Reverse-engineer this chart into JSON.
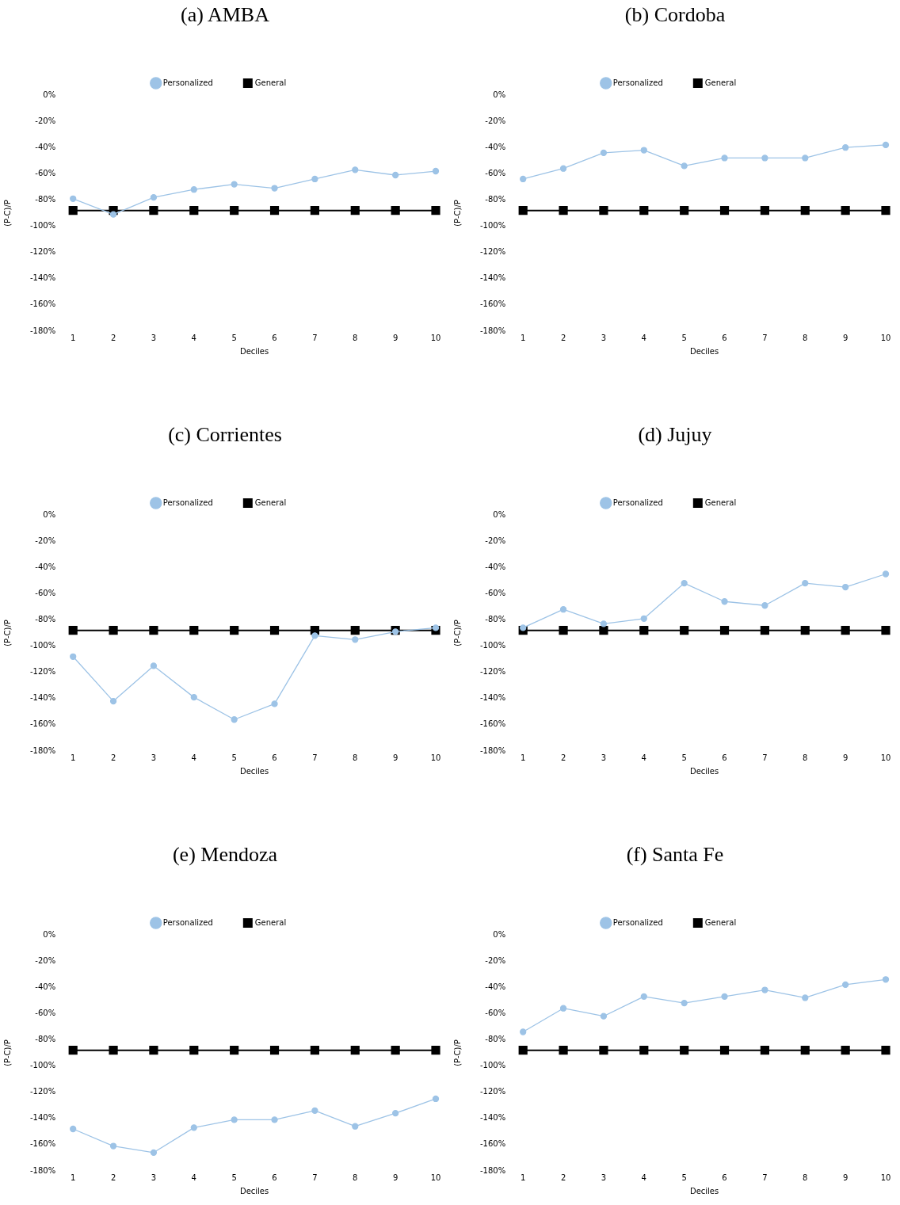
{
  "chart_data": [
    {
      "type": "line",
      "title": "(a) AMBA",
      "xlabel": "Deciles",
      "ylabel": "(P-C)/P",
      "categories": [
        "1",
        "2",
        "3",
        "4",
        "5",
        "6",
        "7",
        "8",
        "9",
        "10"
      ],
      "ylim": [
        -180,
        0
      ],
      "yticks": [
        {
          "value": -180,
          "label": "-180%"
        },
        {
          "value": -160,
          "label": "-160%"
        },
        {
          "value": -140,
          "label": "-140%"
        },
        {
          "value": -120,
          "label": "-120%"
        },
        {
          "value": -100,
          "label": "-100%"
        },
        {
          "value": -80,
          "label": "-80%"
        },
        {
          "value": -60,
          "label": "-60%"
        },
        {
          "value": -40,
          "label": "-40%"
        },
        {
          "value": -20,
          "label": "-20%"
        },
        {
          "value": 0,
          "label": "0%"
        }
      ],
      "grid": false,
      "legend": "top",
      "series": [
        {
          "name": "Personalized",
          "color": "#9dc3e6",
          "marker": "circle",
          "values": [
            -79,
            -91,
            -78,
            -72,
            -68,
            -71,
            -64,
            -57,
            -61,
            -58
          ]
        },
        {
          "name": "General",
          "color": "#000000",
          "marker": "square",
          "values": [
            -88,
            -88,
            -88,
            -88,
            -88,
            -88,
            -88,
            -88,
            -88,
            -88
          ]
        }
      ]
    },
    {
      "type": "line",
      "title": "(b) Cordoba",
      "xlabel": "Deciles",
      "ylabel": "(P-C)/P",
      "categories": [
        "1",
        "2",
        "3",
        "4",
        "5",
        "6",
        "7",
        "8",
        "9",
        "10"
      ],
      "ylim": [
        -180,
        0
      ],
      "yticks": [
        {
          "value": -180,
          "label": "-180%"
        },
        {
          "value": -160,
          "label": "-160%"
        },
        {
          "value": -140,
          "label": "-140%"
        },
        {
          "value": -120,
          "label": "-120%"
        },
        {
          "value": -100,
          "label": "-100%"
        },
        {
          "value": -80,
          "label": "-80%"
        },
        {
          "value": -60,
          "label": "-60%"
        },
        {
          "value": -40,
          "label": "-40%"
        },
        {
          "value": -20,
          "label": "-20%"
        },
        {
          "value": 0,
          "label": "0%"
        }
      ],
      "grid": false,
      "legend": "top",
      "series": [
        {
          "name": "Personalized",
          "color": "#9dc3e6",
          "marker": "circle",
          "values": [
            -64,
            -56,
            -44,
            -42,
            -54,
            -48,
            -48,
            -48,
            -40,
            -38
          ]
        },
        {
          "name": "General",
          "color": "#000000",
          "marker": "square",
          "values": [
            -88,
            -88,
            -88,
            -88,
            -88,
            -88,
            -88,
            -88,
            -88,
            -88
          ]
        }
      ]
    },
    {
      "type": "line",
      "title": "(c) Corrientes",
      "xlabel": "Deciles",
      "ylabel": "(P-C)/P",
      "categories": [
        "1",
        "2",
        "3",
        "4",
        "5",
        "6",
        "7",
        "8",
        "9",
        "10"
      ],
      "ylim": [
        -180,
        0
      ],
      "yticks": [
        {
          "value": -180,
          "label": "-180%"
        },
        {
          "value": -160,
          "label": "-160%"
        },
        {
          "value": -140,
          "label": "-140%"
        },
        {
          "value": -120,
          "label": "-120%"
        },
        {
          "value": -100,
          "label": "-100%"
        },
        {
          "value": -80,
          "label": "-80%"
        },
        {
          "value": -60,
          "label": "-60%"
        },
        {
          "value": -40,
          "label": "-40%"
        },
        {
          "value": -20,
          "label": "-20%"
        },
        {
          "value": 0,
          "label": "0%"
        }
      ],
      "grid": false,
      "legend": "top",
      "series": [
        {
          "name": "Personalized",
          "color": "#9dc3e6",
          "marker": "circle",
          "values": [
            -108,
            -142,
            -115,
            -139,
            -156,
            -144,
            -92,
            -95,
            -89,
            -86
          ]
        },
        {
          "name": "General",
          "color": "#000000",
          "marker": "square",
          "values": [
            -88,
            -88,
            -88,
            -88,
            -88,
            -88,
            -88,
            -88,
            -88,
            -88
          ]
        }
      ]
    },
    {
      "type": "line",
      "title": "(d) Jujuy",
      "xlabel": "Deciles",
      "ylabel": "(P-C)/P",
      "categories": [
        "1",
        "2",
        "3",
        "4",
        "5",
        "6",
        "7",
        "8",
        "9",
        "10"
      ],
      "ylim": [
        -180,
        0
      ],
      "yticks": [
        {
          "value": -180,
          "label": "-180%"
        },
        {
          "value": -160,
          "label": "-160%"
        },
        {
          "value": -140,
          "label": "-140%"
        },
        {
          "value": -120,
          "label": "-120%"
        },
        {
          "value": -100,
          "label": "-100%"
        },
        {
          "value": -80,
          "label": "-80%"
        },
        {
          "value": -60,
          "label": "-60%"
        },
        {
          "value": -40,
          "label": "-40%"
        },
        {
          "value": -20,
          "label": "-20%"
        },
        {
          "value": 0,
          "label": "0%"
        }
      ],
      "grid": false,
      "legend": "top",
      "series": [
        {
          "name": "Personalized",
          "color": "#9dc3e6",
          "marker": "circle",
          "values": [
            -86,
            -72,
            -83,
            -79,
            -52,
            -66,
            -69,
            -52,
            -55,
            -45
          ]
        },
        {
          "name": "General",
          "color": "#000000",
          "marker": "square",
          "values": [
            -88,
            -88,
            -88,
            -88,
            -88,
            -88,
            -88,
            -88,
            -88,
            -88
          ]
        }
      ]
    },
    {
      "type": "line",
      "title": "(e) Mendoza",
      "xlabel": "Deciles",
      "ylabel": "(P-C)/P",
      "categories": [
        "1",
        "2",
        "3",
        "4",
        "5",
        "6",
        "7",
        "8",
        "9",
        "10"
      ],
      "ylim": [
        -180,
        0
      ],
      "yticks": [
        {
          "value": -180,
          "label": "-180%"
        },
        {
          "value": -160,
          "label": "-160%"
        },
        {
          "value": -140,
          "label": "-140%"
        },
        {
          "value": -120,
          "label": "-120%"
        },
        {
          "value": -100,
          "label": "-100%"
        },
        {
          "value": -80,
          "label": "-80%"
        },
        {
          "value": -60,
          "label": "-60%"
        },
        {
          "value": -40,
          "label": "-40%"
        },
        {
          "value": -20,
          "label": "-20%"
        },
        {
          "value": 0,
          "label": "0%"
        }
      ],
      "grid": false,
      "legend": "top",
      "series": [
        {
          "name": "Personalized",
          "color": "#9dc3e6",
          "marker": "circle",
          "values": [
            -148,
            -161,
            -166,
            -147,
            -141,
            -141,
            -134,
            -146,
            -136,
            -125
          ]
        },
        {
          "name": "General",
          "color": "#000000",
          "marker": "square",
          "values": [
            -88,
            -88,
            -88,
            -88,
            -88,
            -88,
            -88,
            -88,
            -88,
            -88
          ]
        }
      ]
    },
    {
      "type": "line",
      "title": "(f) Santa Fe",
      "xlabel": "Deciles",
      "ylabel": "(P-C)/P",
      "categories": [
        "1",
        "2",
        "3",
        "4",
        "5",
        "6",
        "7",
        "8",
        "9",
        "10"
      ],
      "ylim": [
        -180,
        0
      ],
      "yticks": [
        {
          "value": -180,
          "label": "-180%"
        },
        {
          "value": -160,
          "label": "-160%"
        },
        {
          "value": -140,
          "label": "-140%"
        },
        {
          "value": -120,
          "label": "-120%"
        },
        {
          "value": -100,
          "label": "-100%"
        },
        {
          "value": -80,
          "label": "-80%"
        },
        {
          "value": -60,
          "label": "-60%"
        },
        {
          "value": -40,
          "label": "-40%"
        },
        {
          "value": -20,
          "label": "-20%"
        },
        {
          "value": 0,
          "label": "0%"
        }
      ],
      "grid": false,
      "legend": "top",
      "series": [
        {
          "name": "Personalized",
          "color": "#9dc3e6",
          "marker": "circle",
          "values": [
            -74,
            -56,
            -62,
            -47,
            -52,
            -47,
            -42,
            -48,
            -38,
            -34
          ]
        },
        {
          "name": "General",
          "color": "#000000",
          "marker": "square",
          "values": [
            -88,
            -88,
            -88,
            -88,
            -88,
            -88,
            -88,
            -88,
            -88,
            -88
          ]
        }
      ]
    }
  ]
}
